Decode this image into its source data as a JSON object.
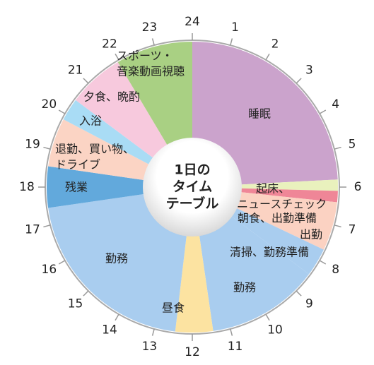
{
  "chart_data": {
    "type": "clock-pie",
    "title": [
      "1日の",
      "タイム",
      "テーブル"
    ],
    "categories": [
      [
        "睡眠"
      ],
      [
        "起床、",
        "ニュースチェック"
      ],
      [
        "朝食、出勤準備"
      ],
      [
        "出勤"
      ],
      [
        "清掃、勤務準備"
      ],
      [
        "勤務"
      ],
      [
        "昼食"
      ],
      [
        "勤務"
      ],
      [
        "残業"
      ],
      [
        "退勤、買い物、",
        "ドライブ"
      ],
      [
        "入浴"
      ],
      [
        "夕食、晩酌"
      ],
      [
        "スポーツ・",
        "音楽動画視聴"
      ]
    ],
    "values": [
      5.8,
      0.3,
      0.3,
      1.3,
      0.75,
      3,
      1,
      5,
      1.1,
      1.3,
      0.6,
      1.5,
      2.05
    ],
    "colors": [
      "#cba3cc",
      "#e9f1bd",
      "#ef8697",
      "#fbd2c2",
      "#a9cdef",
      "#a9cdef",
      "#fce3a1",
      "#a9cdef",
      "#62a9dc",
      "#fbd4c4",
      "#a9dcf5",
      "#f7c9dd",
      "#a9d083"
    ],
    "ticks": [
      1,
      2,
      3,
      4,
      5,
      6,
      7,
      8,
      9,
      10,
      11,
      12,
      13,
      14,
      15,
      16,
      17,
      18,
      19,
      20,
      21,
      22,
      23,
      24
    ],
    "period": 24
  }
}
